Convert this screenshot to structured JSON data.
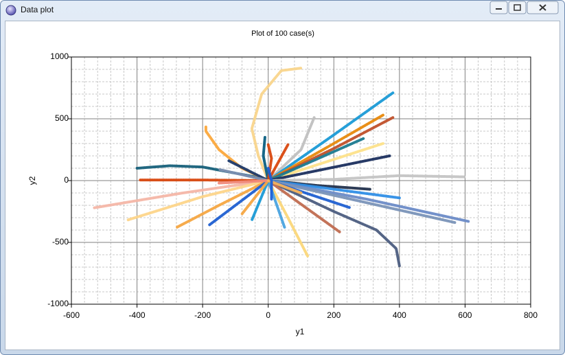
{
  "window": {
    "title": "Data plot"
  },
  "chart_data": {
    "type": "line",
    "title": "Plot of 100 case(s)",
    "x_label": "y1",
    "y_label": "y2",
    "xlim": [
      -600,
      800
    ],
    "xticks": [
      -600,
      -400,
      -200,
      0,
      200,
      400,
      600,
      800
    ],
    "ylim": [
      -1000,
      1000
    ],
    "yticks": [
      -1000,
      -500,
      0,
      500,
      1000
    ],
    "grid": true,
    "minor_divisions": 5,
    "series": [
      {
        "color": "#16607a",
        "x": [
          0,
          -100,
          -200,
          -300,
          -400
        ],
        "values": [
          10,
          60,
          110,
          120,
          100
        ]
      },
      {
        "color": "#d9480f",
        "x": [
          0,
          -200,
          -390
        ],
        "values": [
          0,
          5,
          5
        ]
      },
      {
        "color": "#f4b6a6",
        "x": [
          0,
          -260,
          -530
        ],
        "values": [
          0,
          -100,
          -220
        ]
      },
      {
        "color": "#fdd58a",
        "x": [
          0,
          -200,
          -430
        ],
        "values": [
          0,
          -130,
          -320
        ]
      },
      {
        "color": "#f5a742",
        "x": [
          0,
          -150,
          -280
        ],
        "values": [
          0,
          -200,
          -380
        ]
      },
      {
        "color": "#1f5fd1",
        "x": [
          0,
          -100,
          -180
        ],
        "values": [
          0,
          -200,
          -360
        ]
      },
      {
        "color": "#fba83c",
        "x": [
          0,
          -80,
          -150,
          -190,
          -190
        ],
        "values": [
          0,
          100,
          250,
          400,
          440
        ]
      },
      {
        "color": "#f9d58c",
        "x": [
          0,
          -30,
          -50,
          -20,
          40,
          100
        ],
        "values": [
          0,
          200,
          420,
          700,
          890,
          910
        ]
      },
      {
        "color": "#c0c0c0",
        "x": [
          0,
          100,
          140
        ],
        "values": [
          0,
          250,
          510
        ]
      },
      {
        "color": "#1a9ad6",
        "x": [
          0,
          200,
          380
        ],
        "values": [
          0,
          370,
          710
        ]
      },
      {
        "color": "#e8890c",
        "x": [
          0,
          180,
          350
        ],
        "values": [
          0,
          270,
          530
        ]
      },
      {
        "color": "#c0502a",
        "x": [
          0,
          200,
          380
        ],
        "values": [
          0,
          260,
          510
        ]
      },
      {
        "color": "#fde28a",
        "x": [
          0,
          350
        ],
        "values": [
          0,
          300
        ]
      },
      {
        "color": "#1b7a8f",
        "x": [
          0,
          290
        ],
        "values": [
          0,
          340
        ]
      },
      {
        "color": "#1b2f5e",
        "x": [
          0,
          370
        ],
        "values": [
          0,
          200
        ]
      },
      {
        "color": "#c4c4c4",
        "x": [
          0,
          200,
          400,
          600
        ],
        "values": [
          0,
          10,
          40,
          30
        ]
      },
      {
        "color": "#22314d",
        "x": [
          0,
          150,
          310
        ],
        "values": [
          0,
          -40,
          -70
        ]
      },
      {
        "color": "#2f8ee6",
        "x": [
          0,
          400
        ],
        "values": [
          0,
          -140
        ]
      },
      {
        "color": "#6b8bc7",
        "x": [
          0,
          300,
          610
        ],
        "values": [
          0,
          -150,
          -330
        ]
      },
      {
        "color": "#7a93b8",
        "x": [
          0,
          570
        ],
        "values": [
          0,
          -340
        ]
      },
      {
        "color": "#4c5d80",
        "x": [
          0,
          200,
          330,
          390,
          400
        ],
        "values": [
          0,
          -250,
          -400,
          -550,
          -690
        ]
      },
      {
        "color": "#1f5fd1",
        "x": [
          0,
          250
        ],
        "values": [
          0,
          -220
        ]
      },
      {
        "color": "#c06b50",
        "x": [
          0,
          220
        ],
        "values": [
          0,
          -420
        ]
      },
      {
        "color": "#fbd77a",
        "x": [
          0,
          60,
          120
        ],
        "values": [
          0,
          -300,
          -610
        ]
      },
      {
        "color": "#4aa3df",
        "x": [
          0,
          50
        ],
        "values": [
          0,
          -380
        ]
      },
      {
        "color": "#1a9ad6",
        "x": [
          0,
          -50
        ],
        "values": [
          0,
          -320
        ]
      },
      {
        "color": "#f5a742",
        "x": [
          0,
          -80
        ],
        "values": [
          0,
          -270
        ]
      },
      {
        "color": "#0b5f82",
        "x": [
          0,
          -15,
          -10
        ],
        "values": [
          0,
          200,
          350
        ]
      },
      {
        "color": "#d9480f",
        "x": [
          0,
          10,
          0
        ],
        "values": [
          0,
          180,
          290
        ]
      },
      {
        "color": "#d9480f",
        "x": [
          0,
          60
        ],
        "values": [
          0,
          290
        ]
      },
      {
        "color": "#1d3a6d",
        "x": [
          0,
          -120
        ],
        "values": [
          0,
          160
        ]
      },
      {
        "color": "#7d8fb0",
        "x": [
          0,
          -150
        ],
        "values": [
          0,
          90
        ]
      },
      {
        "color": "#f08a7a",
        "x": [
          0,
          -150
        ],
        "values": [
          0,
          -20
        ]
      },
      {
        "color": "#f7b35a",
        "x": [
          0,
          100
        ],
        "values": [
          0,
          -100
        ]
      },
      {
        "color": "#1a5fd6",
        "x": [
          0,
          10,
          10
        ],
        "values": [
          100,
          0,
          -150
        ]
      }
    ]
  }
}
